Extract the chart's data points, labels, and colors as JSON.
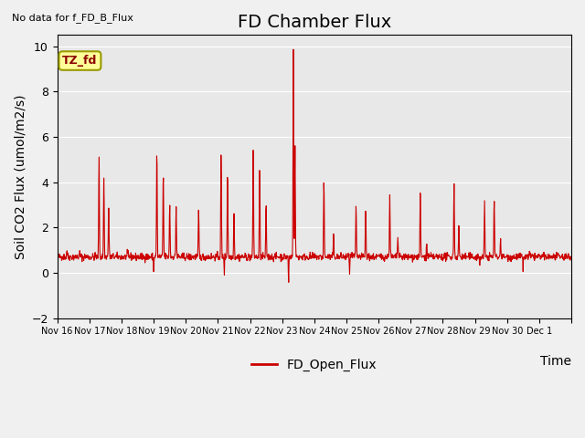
{
  "title": "FD Chamber Flux",
  "xlabel": "Time",
  "ylabel": "Soil CO2 Flux (umol/m2/s)",
  "no_data_label": "No data for f_FD_B_Flux",
  "tz_label": "TZ_fd",
  "legend_label": "FD_Open_Flux",
  "legend_color": "#cc0000",
  "ylim": [
    -2,
    10.5
  ],
  "yticks": [
    -2,
    0,
    2,
    4,
    6,
    8,
    10
  ],
  "bg_color": "#e8e8e8",
  "plot_bg_color": "#e8e8e8",
  "line_color": "#cc0000",
  "title_fontsize": 14,
  "label_fontsize": 10,
  "xtick_positions": [
    0,
    1,
    2,
    3,
    4,
    5,
    6,
    7,
    8,
    9,
    10,
    11,
    12,
    13,
    14,
    15,
    16
  ],
  "xtick_labels": [
    "Nov 16",
    "Nov 17",
    "Nov 18",
    "Nov 19",
    "Nov 20",
    "Nov 21",
    "Nov 22",
    "Nov 23",
    "Nov 24",
    "Nov 25",
    "Nov 26",
    "Nov 27",
    "Nov 28",
    "Nov 29",
    "Nov 30",
    "Dec 1",
    ""
  ]
}
